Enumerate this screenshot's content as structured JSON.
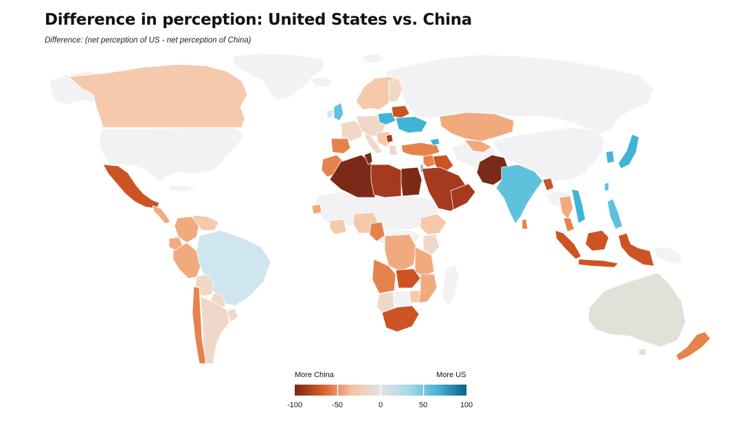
{
  "title": "Difference in perception: United States vs. China",
  "subtitle": "Difference: (net perception of US - net perception of China)",
  "legend": {
    "left_label": "More China",
    "right_label": "More US",
    "ticks": [
      "-100",
      "-50",
      "0",
      "50",
      "100"
    ],
    "color_stops": [
      "#7a2616",
      "#d8612a",
      "#f4c4a4",
      "#e2e2e2",
      "#a7d9e8",
      "#45b2d3",
      "#0d5f86"
    ]
  },
  "colors": {
    "no_data": "#f2f2f4",
    "australia": "#e2e1d8",
    "dark_brown": "#7c2a18",
    "brown_red": "#a53a1f",
    "orange_red": "#cc5424",
    "orange": "#e6834d",
    "light_orange": "#f0aa7e",
    "peach": "#f5c9ab",
    "light_peach": "#f0d8c8",
    "neutral": "#e4e0dc",
    "light_blue": "#cfe6ee",
    "blue": "#5ec2dc",
    "mid_blue": "#3fb4d6"
  }
}
